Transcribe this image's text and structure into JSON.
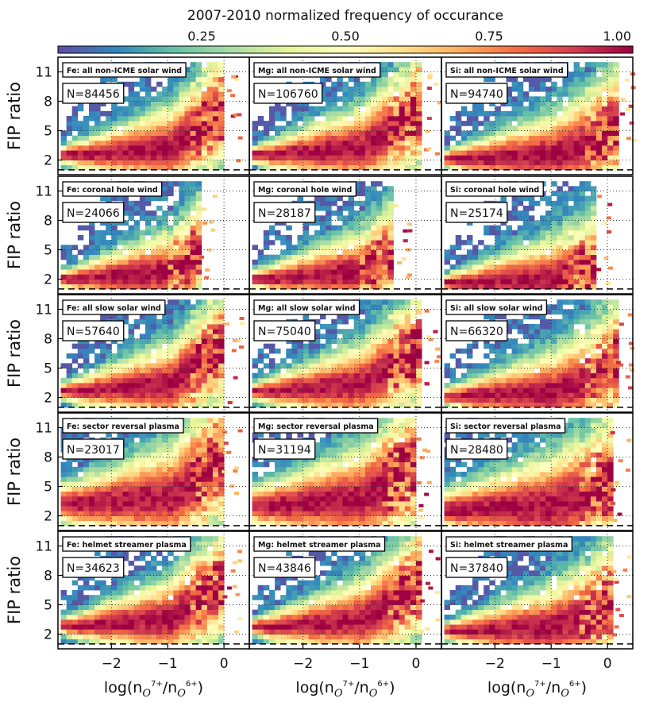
{
  "chart_data": {
    "type": "heatmap",
    "colorbar": {
      "title": "2007-2010 normalized frequency of occurance",
      "ticks": [
        0.25,
        0.5,
        0.75,
        1.0
      ],
      "tick_labels": [
        "0.25",
        "0.50",
        "0.75",
        "1.00"
      ],
      "range": [
        0.0,
        1.0
      ],
      "colormap": "Spectral_r"
    },
    "x_axis": {
      "label_base": "log(n",
      "label_sub1": "O",
      "label_sup1": "7+",
      "label_mid": "/n",
      "label_sub2": "O",
      "label_sup2": "6+",
      "label_end": ")",
      "range": [
        -2.95,
        0.45
      ],
      "ticks": [
        -2,
        -1,
        0
      ],
      "tick_labels": [
        "−2",
        "−1",
        "0"
      ]
    },
    "y_axis": {
      "label": "FIP ratio",
      "range": [
        0.5,
        12.5
      ],
      "ticks": [
        2,
        5,
        8,
        11
      ],
      "tick_labels": [
        "2",
        "5",
        "8",
        "11"
      ],
      "dashed_reference": 1
    },
    "grid": "dotted",
    "columns": [
      "Fe",
      "Mg",
      "Si"
    ],
    "rows": [
      "all non-ICME solar wind",
      "coronal hole wind",
      "all slow solar wind",
      "sector reversal plasma",
      "helmet streamer plasma"
    ],
    "panels": [
      {
        "title": "Fe: all non-ICME solar wind",
        "count_label": "N=84456",
        "n": 84456
      },
      {
        "title": "Mg: all non-ICME solar wind",
        "count_label": "N=106760",
        "n": 106760
      },
      {
        "title": "Si: all non-ICME solar wind",
        "count_label": "N=94740",
        "n": 94740
      },
      {
        "title": "Fe: coronal hole wind",
        "count_label": "N=24066",
        "n": 24066
      },
      {
        "title": "Mg: coronal hole wind",
        "count_label": "N=28187",
        "n": 28187
      },
      {
        "title": "Si: coronal hole wind",
        "count_label": "N=25174",
        "n": 25174
      },
      {
        "title": "Fe: all slow solar wind",
        "count_label": "N=57640",
        "n": 57640
      },
      {
        "title": "Mg: all slow solar wind",
        "count_label": "N=75040",
        "n": 75040
      },
      {
        "title": "Si: all slow solar wind",
        "count_label": "N=66320",
        "n": 66320
      },
      {
        "title": "Fe: sector reversal plasma",
        "count_label": "N=23017",
        "n": 23017
      },
      {
        "title": "Mg: sector reversal plasma",
        "count_label": "N=31194",
        "n": 31194
      },
      {
        "title": "Si: sector reversal plasma",
        "count_label": "N=28480",
        "n": 28480
      },
      {
        "title": "Fe: helmet streamer plasma",
        "count_label": "N=34623",
        "n": 34623
      },
      {
        "title": "Mg: helmet streamer plasma",
        "count_label": "N=43846",
        "n": 43846
      },
      {
        "title": "Si: helmet streamer plasma",
        "count_label": "N=37840",
        "n": 37840
      }
    ],
    "ridge_fip": {
      "Fe": [
        [
          -2.6,
          1.8
        ],
        [
          -1.0,
          2.5
        ],
        [
          -0.4,
          5.0
        ]
      ],
      "Mg": [
        [
          -2.6,
          1.8
        ],
        [
          -1.0,
          2.5
        ],
        [
          -0.3,
          5.0
        ]
      ],
      "Si": [
        [
          -2.6,
          1.5
        ],
        [
          -1.0,
          1.9
        ],
        [
          -0.3,
          3.3
        ]
      ]
    }
  }
}
